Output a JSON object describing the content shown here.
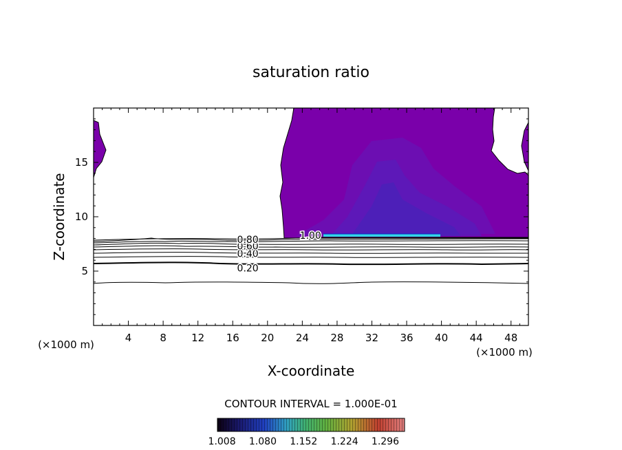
{
  "chart_data": {
    "type": "contour",
    "title": "saturation ratio",
    "xlabel": "X-coordinate",
    "ylabel": "Z-coordinate",
    "x_unit_left": "(×1000 m)",
    "x_unit_right": "(×1000 m)",
    "xlim": [
      0,
      50
    ],
    "ylim": [
      0,
      20
    ],
    "x_ticks": [
      4,
      8,
      12,
      16,
      20,
      24,
      28,
      32,
      36,
      40,
      44,
      48
    ],
    "y_ticks": [
      5,
      10,
      15
    ],
    "contour_levels": [
      0.0,
      0.1,
      0.2,
      0.3,
      0.4,
      0.5,
      0.6,
      0.7,
      0.8,
      0.9,
      1.0
    ],
    "contour_labels": [
      {
        "text": "0.20",
        "x": 16.5,
        "z": 5.3
      },
      {
        "text": "0.40",
        "x": 16.5,
        "z": 6.6
      },
      {
        "text": "0.60",
        "x": 16.5,
        "z": 7.3
      },
      {
        "text": "0.80",
        "x": 16.5,
        "z": 7.9
      },
      {
        "text": "1.00",
        "x": 23.7,
        "z": 8.3
      }
    ],
    "contour_interval_text": "CONTOUR INTERVAL = 1.000E-01",
    "colorbar": {
      "tick_labels": [
        "1.008",
        "1.080",
        "1.152",
        "1.224",
        "1.296"
      ],
      "tick_values": [
        1.008,
        1.08,
        1.152,
        1.224,
        1.296
      ],
      "range": [
        1.0,
        1.33
      ],
      "colors": [
        "#0c0010",
        "#1a1a70",
        "#2040c0",
        "#30a0c0",
        "#40b070",
        "#60b040",
        "#b0a030",
        "#c04030",
        "#e08080"
      ]
    },
    "fill_color": "#7a00aa"
  }
}
